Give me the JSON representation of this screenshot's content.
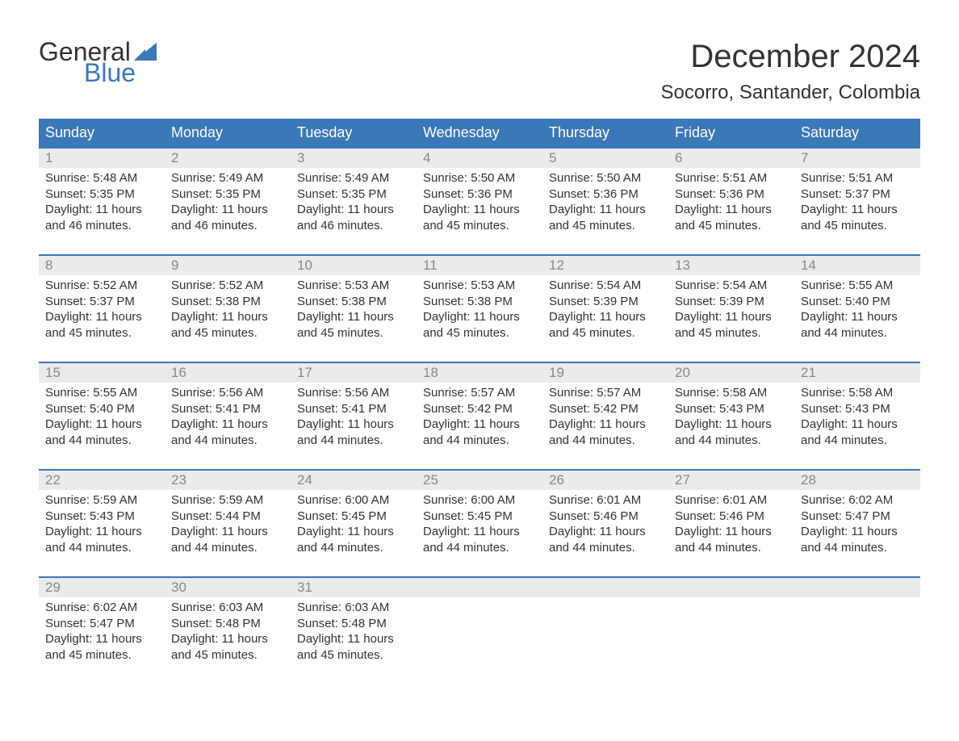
{
  "logo": {
    "text1": "General",
    "text2": "Blue",
    "accent_color": "#3b78b8"
  },
  "title": "December 2024",
  "location": "Socorro, Santander, Colombia",
  "colors": {
    "header_bg": "#3b78b8",
    "header_text": "#ffffff",
    "daynum_bg": "#ebebeb",
    "daynum_text": "#888888",
    "row_border": "#3b78b8",
    "body_text": "#333333",
    "background": "#ffffff"
  },
  "typography": {
    "title_fontsize": 40,
    "location_fontsize": 24,
    "header_fontsize": 18,
    "daynum_fontsize": 17,
    "body_fontsize": 15
  },
  "day_headers": [
    "Sunday",
    "Monday",
    "Tuesday",
    "Wednesday",
    "Thursday",
    "Friday",
    "Saturday"
  ],
  "labels": {
    "sunrise": "Sunrise:",
    "sunset": "Sunset:",
    "daylight": "Daylight:"
  },
  "weeks": [
    [
      {
        "num": "1",
        "sunrise": "5:48 AM",
        "sunset": "5:35 PM",
        "daylight1": "11 hours",
        "daylight2": "and 46 minutes."
      },
      {
        "num": "2",
        "sunrise": "5:49 AM",
        "sunset": "5:35 PM",
        "daylight1": "11 hours",
        "daylight2": "and 46 minutes."
      },
      {
        "num": "3",
        "sunrise": "5:49 AM",
        "sunset": "5:35 PM",
        "daylight1": "11 hours",
        "daylight2": "and 46 minutes."
      },
      {
        "num": "4",
        "sunrise": "5:50 AM",
        "sunset": "5:36 PM",
        "daylight1": "11 hours",
        "daylight2": "and 45 minutes."
      },
      {
        "num": "5",
        "sunrise": "5:50 AM",
        "sunset": "5:36 PM",
        "daylight1": "11 hours",
        "daylight2": "and 45 minutes."
      },
      {
        "num": "6",
        "sunrise": "5:51 AM",
        "sunset": "5:36 PM",
        "daylight1": "11 hours",
        "daylight2": "and 45 minutes."
      },
      {
        "num": "7",
        "sunrise": "5:51 AM",
        "sunset": "5:37 PM",
        "daylight1": "11 hours",
        "daylight2": "and 45 minutes."
      }
    ],
    [
      {
        "num": "8",
        "sunrise": "5:52 AM",
        "sunset": "5:37 PM",
        "daylight1": "11 hours",
        "daylight2": "and 45 minutes."
      },
      {
        "num": "9",
        "sunrise": "5:52 AM",
        "sunset": "5:38 PM",
        "daylight1": "11 hours",
        "daylight2": "and 45 minutes."
      },
      {
        "num": "10",
        "sunrise": "5:53 AM",
        "sunset": "5:38 PM",
        "daylight1": "11 hours",
        "daylight2": "and 45 minutes."
      },
      {
        "num": "11",
        "sunrise": "5:53 AM",
        "sunset": "5:38 PM",
        "daylight1": "11 hours",
        "daylight2": "and 45 minutes."
      },
      {
        "num": "12",
        "sunrise": "5:54 AM",
        "sunset": "5:39 PM",
        "daylight1": "11 hours",
        "daylight2": "and 45 minutes."
      },
      {
        "num": "13",
        "sunrise": "5:54 AM",
        "sunset": "5:39 PM",
        "daylight1": "11 hours",
        "daylight2": "and 45 minutes."
      },
      {
        "num": "14",
        "sunrise": "5:55 AM",
        "sunset": "5:40 PM",
        "daylight1": "11 hours",
        "daylight2": "and 44 minutes."
      }
    ],
    [
      {
        "num": "15",
        "sunrise": "5:55 AM",
        "sunset": "5:40 PM",
        "daylight1": "11 hours",
        "daylight2": "and 44 minutes."
      },
      {
        "num": "16",
        "sunrise": "5:56 AM",
        "sunset": "5:41 PM",
        "daylight1": "11 hours",
        "daylight2": "and 44 minutes."
      },
      {
        "num": "17",
        "sunrise": "5:56 AM",
        "sunset": "5:41 PM",
        "daylight1": "11 hours",
        "daylight2": "and 44 minutes."
      },
      {
        "num": "18",
        "sunrise": "5:57 AM",
        "sunset": "5:42 PM",
        "daylight1": "11 hours",
        "daylight2": "and 44 minutes."
      },
      {
        "num": "19",
        "sunrise": "5:57 AM",
        "sunset": "5:42 PM",
        "daylight1": "11 hours",
        "daylight2": "and 44 minutes."
      },
      {
        "num": "20",
        "sunrise": "5:58 AM",
        "sunset": "5:43 PM",
        "daylight1": "11 hours",
        "daylight2": "and 44 minutes."
      },
      {
        "num": "21",
        "sunrise": "5:58 AM",
        "sunset": "5:43 PM",
        "daylight1": "11 hours",
        "daylight2": "and 44 minutes."
      }
    ],
    [
      {
        "num": "22",
        "sunrise": "5:59 AM",
        "sunset": "5:43 PM",
        "daylight1": "11 hours",
        "daylight2": "and 44 minutes."
      },
      {
        "num": "23",
        "sunrise": "5:59 AM",
        "sunset": "5:44 PM",
        "daylight1": "11 hours",
        "daylight2": "and 44 minutes."
      },
      {
        "num": "24",
        "sunrise": "6:00 AM",
        "sunset": "5:45 PM",
        "daylight1": "11 hours",
        "daylight2": "and 44 minutes."
      },
      {
        "num": "25",
        "sunrise": "6:00 AM",
        "sunset": "5:45 PM",
        "daylight1": "11 hours",
        "daylight2": "and 44 minutes."
      },
      {
        "num": "26",
        "sunrise": "6:01 AM",
        "sunset": "5:46 PM",
        "daylight1": "11 hours",
        "daylight2": "and 44 minutes."
      },
      {
        "num": "27",
        "sunrise": "6:01 AM",
        "sunset": "5:46 PM",
        "daylight1": "11 hours",
        "daylight2": "and 44 minutes."
      },
      {
        "num": "28",
        "sunrise": "6:02 AM",
        "sunset": "5:47 PM",
        "daylight1": "11 hours",
        "daylight2": "and 44 minutes."
      }
    ],
    [
      {
        "num": "29",
        "sunrise": "6:02 AM",
        "sunset": "5:47 PM",
        "daylight1": "11 hours",
        "daylight2": "and 45 minutes."
      },
      {
        "num": "30",
        "sunrise": "6:03 AM",
        "sunset": "5:48 PM",
        "daylight1": "11 hours",
        "daylight2": "and 45 minutes."
      },
      {
        "num": "31",
        "sunrise": "6:03 AM",
        "sunset": "5:48 PM",
        "daylight1": "11 hours",
        "daylight2": "and 45 minutes."
      },
      null,
      null,
      null,
      null
    ]
  ]
}
